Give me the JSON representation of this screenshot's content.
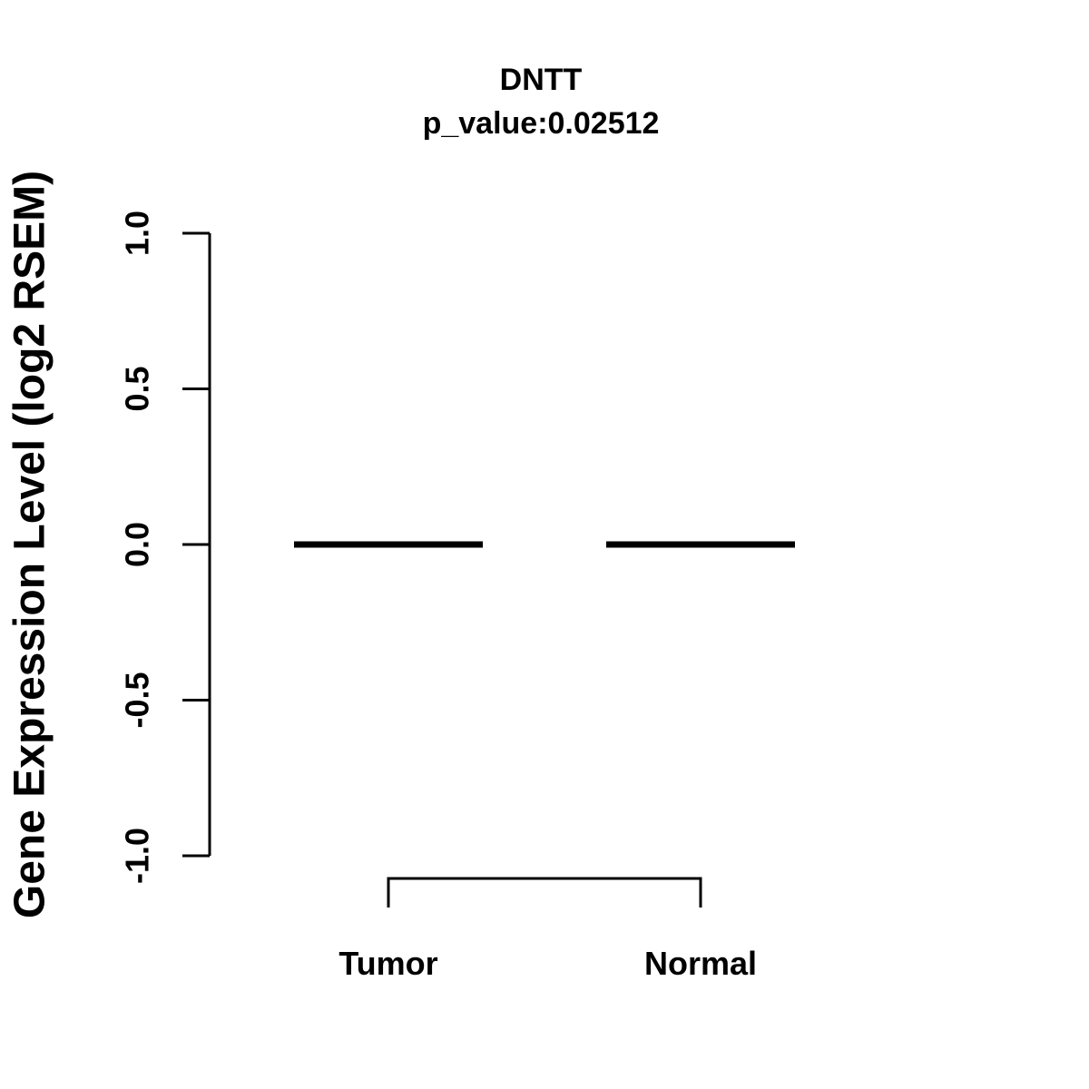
{
  "page": {
    "background_color": "#ffffff",
    "foreground_color": "#000000"
  },
  "chart_data": {
    "type": "boxplot",
    "title": "DNTT",
    "subtitle": "p_value:0.02512",
    "p_value": 0.02512,
    "gene": "DNTT",
    "ylabel": "Gene Expression Level (log2 RSEM)",
    "xlabel": "",
    "ylim": [
      -1.0,
      1.0
    ],
    "yticks": [
      {
        "value": 1.0,
        "label": "1.0"
      },
      {
        "value": 0.5,
        "label": "0.5"
      },
      {
        "value": 0.0,
        "label": "0.0"
      },
      {
        "value": -0.5,
        "label": "-0.5"
      },
      {
        "value": -1.0,
        "label": "-1.0"
      }
    ],
    "categories": [
      "Tumor",
      "Normal"
    ],
    "series": [
      {
        "name": "Tumor",
        "median": 0.0,
        "q1": 0.0,
        "q3": 0.0,
        "min": 0.0,
        "max": 0.0
      },
      {
        "name": "Normal",
        "median": 0.0,
        "q1": 0.0,
        "q3": 0.0,
        "min": 0.0,
        "max": 0.0
      }
    ],
    "comparison_bracket": {
      "groups": [
        "Tumor",
        "Normal"
      ]
    },
    "grid": false,
    "legend": false,
    "colors": {
      "box": "#000000",
      "axis": "#000000",
      "text": "#000000"
    }
  }
}
